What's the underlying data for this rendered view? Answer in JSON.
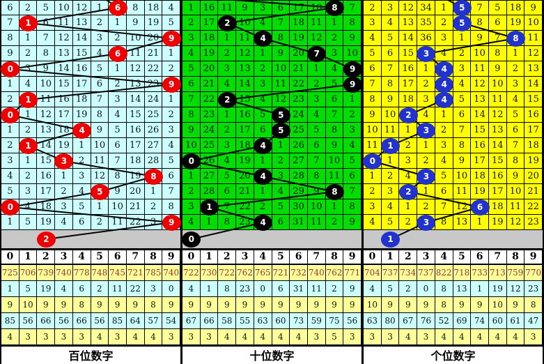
{
  "chart_data": {
    "type": "table",
    "description": "Lottery 3D digit trend chart with three panels (hundreds, tens, units). Each panel shows omission counts per digit column 0-9; the drawn digit of each period is marked with a colored ball connected by a broken line. Bottom block shows per-digit statistics.",
    "column_headers": [
      "0",
      "1",
      "2",
      "3",
      "4",
      "5",
      "6",
      "7",
      "8",
      "9"
    ],
    "panels": [
      {
        "title": "百位数字",
        "cell_bg": "#CCFFFF",
        "ball_color": "#EE0000",
        "incoming_x": 151,
        "rows": [
          [
            6,
            2,
            5,
            10,
            12,
            1,
            6,
            8,
            18,
            4
          ],
          [
            7,
            1,
            6,
            11,
            13,
            2,
            1,
            9,
            19,
            5
          ],
          [
            8,
            1,
            7,
            12,
            14,
            3,
            2,
            10,
            20,
            9
          ],
          [
            9,
            2,
            8,
            13,
            15,
            4,
            6,
            11,
            21,
            1
          ],
          [
            0,
            3,
            9,
            14,
            16,
            5,
            1,
            12,
            22,
            2
          ],
          [
            1,
            4,
            10,
            15,
            17,
            6,
            2,
            13,
            23,
            9
          ],
          [
            2,
            1,
            11,
            16,
            18,
            7,
            3,
            14,
            24,
            1
          ],
          [
            0,
            1,
            12,
            17,
            19,
            8,
            4,
            15,
            25,
            2
          ],
          [
            1,
            2,
            13,
            18,
            4,
            9,
            5,
            16,
            26,
            3
          ],
          [
            2,
            1,
            14,
            19,
            1,
            10,
            6,
            17,
            27,
            4
          ],
          [
            3,
            1,
            15,
            3,
            2,
            11,
            7,
            18,
            28,
            5
          ],
          [
            4,
            2,
            16,
            1,
            3,
            12,
            8,
            19,
            8,
            6
          ],
          [
            5,
            3,
            17,
            2,
            4,
            5,
            9,
            20,
            1,
            7
          ],
          [
            0,
            4,
            18,
            3,
            5,
            1,
            10,
            21,
            2,
            8
          ],
          [
            1,
            5,
            19,
            4,
            6,
            2,
            11,
            22,
            3,
            9
          ]
        ],
        "ball_cols": [
          6,
          1,
          9,
          6,
          0,
          9,
          1,
          0,
          4,
          1,
          3,
          8,
          5,
          0,
          9
        ],
        "gray_ball": {
          "col": 2,
          "label": "2"
        },
        "stats_rows": [
          [
            725,
            706,
            739,
            740,
            778,
            748,
            745,
            721,
            785,
            740
          ],
          [
            1,
            5,
            19,
            4,
            6,
            2,
            11,
            22,
            3,
            0
          ],
          [
            9,
            10,
            9,
            9,
            8,
            9,
            9,
            9,
            8,
            9
          ],
          [
            85,
            56,
            66,
            56,
            66,
            56,
            85,
            64,
            57,
            54
          ],
          [
            4,
            3,
            3,
            3,
            3,
            4,
            3,
            4,
            4,
            3
          ]
        ]
      },
      {
        "title": "十位数字",
        "cell_bg": "#00DE00",
        "ball_color": "#000000",
        "incoming_x": 75,
        "rows": [
          [
            1,
            16,
            11,
            9,
            3,
            6,
            17,
            10,
            8,
            7
          ],
          [
            2,
            17,
            2,
            10,
            4,
            7,
            18,
            11,
            1,
            8
          ],
          [
            3,
            18,
            1,
            11,
            4,
            8,
            19,
            12,
            2,
            9
          ],
          [
            4,
            19,
            2,
            12,
            1,
            9,
            20,
            7,
            3,
            10
          ],
          [
            5,
            20,
            3,
            13,
            2,
            10,
            21,
            1,
            4,
            9
          ],
          [
            6,
            21,
            4,
            14,
            3,
            11,
            22,
            2,
            5,
            9
          ],
          [
            7,
            22,
            2,
            15,
            4,
            12,
            23,
            3,
            6,
            1
          ],
          [
            8,
            23,
            1,
            16,
            5,
            5,
            24,
            4,
            7,
            2
          ],
          [
            9,
            24,
            2,
            17,
            6,
            5,
            25,
            5,
            8,
            3
          ],
          [
            10,
            25,
            3,
            18,
            4,
            1,
            26,
            6,
            9,
            4
          ],
          [
            0,
            26,
            4,
            19,
            1,
            2,
            27,
            7,
            10,
            5
          ],
          [
            1,
            27,
            5,
            20,
            4,
            3,
            28,
            8,
            11,
            6
          ],
          [
            2,
            28,
            6,
            21,
            1,
            4,
            29,
            9,
            8,
            7
          ],
          [
            3,
            1,
            7,
            22,
            2,
            5,
            30,
            10,
            1,
            8
          ],
          [
            4,
            1,
            8,
            23,
            4,
            6,
            31,
            11,
            2,
            9
          ]
        ],
        "ball_cols": [
          8,
          2,
          4,
          7,
          9,
          9,
          2,
          5,
          5,
          4,
          0,
          4,
          8,
          1,
          4
        ],
        "gray_ball": {
          "col": 0,
          "label": "0"
        },
        "stats_rows": [
          [
            722,
            730,
            722,
            762,
            765,
            721,
            732,
            740,
            762,
            771
          ],
          [
            4,
            1,
            8,
            23,
            0,
            6,
            31,
            11,
            2,
            9
          ],
          [
            9,
            9,
            9,
            9,
            9,
            9,
            9,
            9,
            9,
            9
          ],
          [
            67,
            66,
            58,
            55,
            63,
            60,
            73,
            59,
            75,
            56
          ],
          [
            3,
            3,
            4,
            4,
            4,
            4,
            4,
            3,
            5,
            3
          ]
        ]
      },
      {
        "title": "个位数字",
        "cell_bg": "#FFFF00",
        "ball_color": "#2233CC",
        "incoming_x": 121,
        "rows": [
          [
            2,
            3,
            12,
            34,
            1,
            5,
            7,
            5,
            18,
            9
          ],
          [
            3,
            4,
            13,
            35,
            2,
            5,
            8,
            6,
            19,
            10
          ],
          [
            4,
            5,
            14,
            36,
            3,
            1,
            9,
            7,
            8,
            11
          ],
          [
            5,
            6,
            15,
            3,
            4,
            2,
            10,
            8,
            1,
            12
          ],
          [
            6,
            7,
            16,
            1,
            4,
            3,
            11,
            9,
            2,
            13
          ],
          [
            7,
            8,
            17,
            2,
            4,
            4,
            12,
            10,
            3,
            14
          ],
          [
            8,
            9,
            18,
            3,
            4,
            5,
            13,
            11,
            4,
            15
          ],
          [
            9,
            10,
            2,
            4,
            1,
            6,
            14,
            12,
            5,
            16
          ],
          [
            10,
            11,
            1,
            3,
            2,
            7,
            15,
            13,
            6,
            17
          ],
          [
            11,
            1,
            2,
            1,
            3,
            8,
            16,
            14,
            7,
            18
          ],
          [
            0,
            1,
            3,
            2,
            4,
            9,
            17,
            15,
            8,
            19
          ],
          [
            1,
            2,
            4,
            3,
            5,
            10,
            18,
            16,
            9,
            20
          ],
          [
            2,
            3,
            2,
            1,
            6,
            11,
            19,
            17,
            10,
            21
          ],
          [
            3,
            4,
            1,
            2,
            7,
            12,
            6,
            18,
            11,
            22
          ],
          [
            4,
            5,
            2,
            3,
            8,
            13,
            1,
            19,
            12,
            23
          ]
        ],
        "ball_cols": [
          5,
          5,
          8,
          3,
          4,
          4,
          4,
          2,
          3,
          1,
          0,
          3,
          2,
          6,
          3
        ],
        "gray_ball": {
          "col": 1,
          "label": "1"
        },
        "stats_rows": [
          [
            704,
            737,
            734,
            737,
            822,
            718,
            733,
            713,
            759,
            770
          ],
          [
            4,
            5,
            2,
            0,
            8,
            13,
            1,
            19,
            12,
            23
          ],
          [
            10,
            9,
            9,
            9,
            8,
            9,
            9,
            10,
            9,
            8
          ],
          [
            63,
            80,
            67,
            76,
            52,
            69,
            74,
            60,
            61,
            47
          ],
          [
            3,
            3,
            4,
            3,
            4,
            4,
            4,
            4,
            4,
            3
          ]
        ]
      }
    ]
  }
}
